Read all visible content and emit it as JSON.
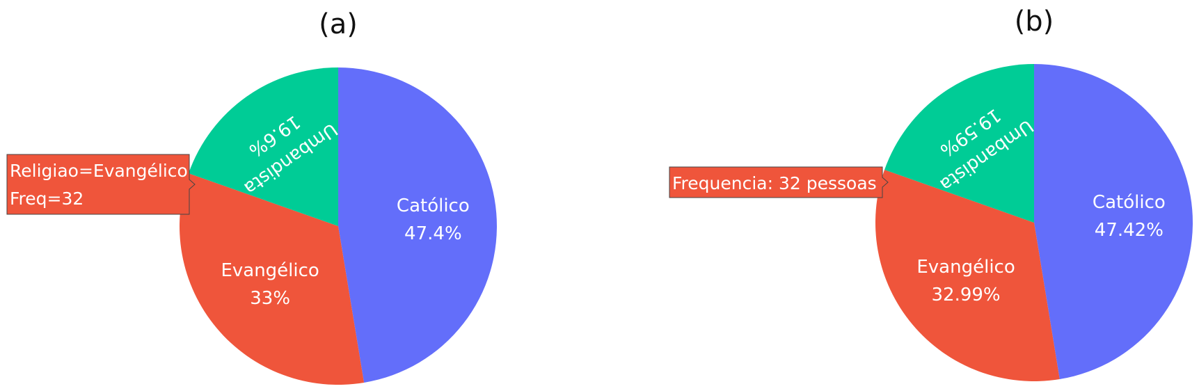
{
  "chart_data": [
    {
      "type": "pie",
      "title": "(a)",
      "categories": [
        "Católico",
        "Evangélico",
        "Umbandista"
      ],
      "values": [
        47.4,
        33.0,
        19.6
      ],
      "labels": [
        "47.4%",
        "33%",
        "19.6%"
      ],
      "colors": [
        "#636efa",
        "#ef553b",
        "#00cc96"
      ],
      "tooltip": {
        "lines": [
          "Religiao=Evangélico",
          "Freq=32"
        ],
        "slice": "Evangélico"
      }
    },
    {
      "type": "pie",
      "title": "(b)",
      "categories": [
        "Católico",
        "Evangélico",
        "Umbandista"
      ],
      "values": [
        47.42,
        32.99,
        19.59
      ],
      "labels": [
        "47.42%",
        "32.99%",
        "19.59%"
      ],
      "colors": [
        "#636efa",
        "#ef553b",
        "#00cc96"
      ],
      "tooltip": {
        "lines": [
          "Frequencia: 32 pessoas"
        ],
        "slice": "Evangélico"
      }
    }
  ]
}
